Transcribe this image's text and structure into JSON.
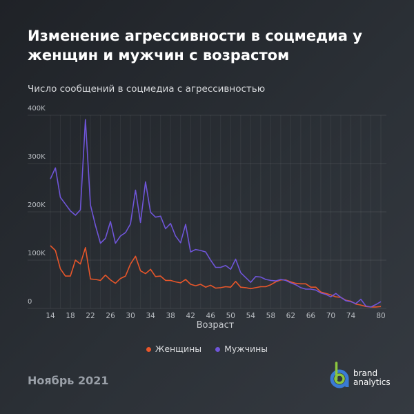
{
  "title": "Изменение агрессивности в соцмедиа у женщин и мужчин с возрастом",
  "subtitle": "Число сообщений в соцмедиа с агрессивностью",
  "footer": {
    "date": "Ноябрь 2021",
    "logo_line1": "brand",
    "logo_line2": "analytics"
  },
  "colors": {
    "women": "#e8562a",
    "men": "#6f55d9",
    "logo_green": "#8cc63f",
    "logo_blue": "#3a7bd5"
  },
  "chart_data": {
    "type": "line",
    "title": "",
    "xlabel": "Возраст",
    "ylabel": "",
    "xlim": [
      14,
      80
    ],
    "ylim": [
      0,
      400000
    ],
    "grid": true,
    "legend": "bottom",
    "x_ticks": [
      14,
      18,
      22,
      26,
      30,
      34,
      38,
      42,
      46,
      50,
      54,
      58,
      62,
      66,
      70,
      74,
      80
    ],
    "y_ticks": [
      0,
      100000,
      200000,
      300000,
      400000
    ],
    "y_tick_labels": [
      "0",
      "100K",
      "200K",
      "300K",
      "400K"
    ],
    "x": [
      14,
      15,
      16,
      17,
      18,
      19,
      20,
      21,
      22,
      23,
      24,
      25,
      26,
      27,
      28,
      29,
      30,
      31,
      32,
      33,
      34,
      35,
      36,
      37,
      38,
      39,
      40,
      41,
      42,
      43,
      44,
      45,
      46,
      47,
      48,
      49,
      50,
      51,
      52,
      53,
      54,
      55,
      56,
      57,
      58,
      59,
      60,
      61,
      62,
      63,
      64,
      65,
      66,
      67,
      68,
      69,
      70,
      71,
      72,
      73,
      74,
      75,
      76,
      77,
      78,
      79,
      80
    ],
    "series": [
      {
        "name": "Женщины",
        "color": "#e8562a",
        "values": [
          130000,
          120000,
          82000,
          67000,
          67000,
          100000,
          92000,
          126000,
          61000,
          60000,
          58000,
          69000,
          59000,
          52000,
          62000,
          67000,
          92000,
          108000,
          78000,
          72000,
          81000,
          66000,
          67000,
          58000,
          58000,
          55000,
          53000,
          60000,
          50000,
          47000,
          50000,
          44000,
          48000,
          42000,
          43000,
          45000,
          44000,
          56000,
          44000,
          43000,
          41000,
          43000,
          45000,
          45000,
          49000,
          55000,
          59000,
          59000,
          55000,
          52000,
          51000,
          51000,
          44000,
          44000,
          34000,
          31000,
          28000,
          24000,
          23000,
          17000,
          15000,
          9000,
          7000,
          4000,
          3000,
          3000,
          4000
        ]
      },
      {
        "name": "Мужчины",
        "color": "#6f55d9",
        "values": [
          268000,
          291000,
          230000,
          216000,
          202000,
          193000,
          204000,
          391000,
          214000,
          172000,
          135000,
          145000,
          180000,
          135000,
          150000,
          157000,
          175000,
          245000,
          178000,
          262000,
          199000,
          189000,
          191000,
          165000,
          176000,
          150000,
          136000,
          174000,
          117000,
          122000,
          120000,
          117000,
          100000,
          85000,
          85000,
          89000,
          81000,
          102000,
          74000,
          64000,
          54000,
          66000,
          65000,
          60000,
          58000,
          57000,
          60000,
          58000,
          53000,
          49000,
          43000,
          40000,
          40000,
          38000,
          32000,
          29000,
          24000,
          31000,
          23000,
          16000,
          14000,
          10000,
          19000,
          5000,
          3000,
          8000,
          14000
        ]
      }
    ]
  }
}
